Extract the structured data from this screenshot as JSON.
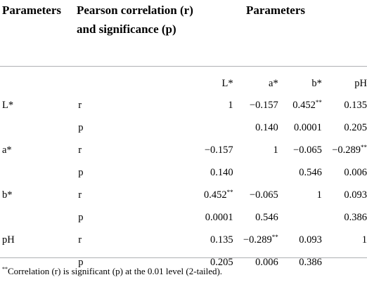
{
  "header": {
    "col_parameters": "Parameters",
    "col_pearson": "Pearson correlation (r) and significance (p)",
    "col_parameters_group": "Parameters"
  },
  "columns": [
    "L*",
    "a*",
    "b*",
    "pH"
  ],
  "rows": [
    {
      "param": "L*",
      "stat": "r",
      "values": [
        "1",
        "−0.157",
        "0.452**",
        "0.135"
      ]
    },
    {
      "param": "",
      "stat": "p",
      "values": [
        "",
        "0.140",
        "0.0001",
        "0.205"
      ]
    },
    {
      "param": "a*",
      "stat": "r",
      "values": [
        "−0.157",
        "1",
        "−0.065",
        "−0.289**"
      ]
    },
    {
      "param": "",
      "stat": "p",
      "values": [
        "0.140",
        "",
        "0.546",
        "0.006"
      ]
    },
    {
      "param": "b*",
      "stat": "r",
      "values": [
        "0.452**",
        "−0.065",
        "1",
        "0.093"
      ]
    },
    {
      "param": "",
      "stat": "p",
      "values": [
        "0.0001",
        "0.546",
        "",
        "0.386"
      ]
    },
    {
      "param": "pH",
      "stat": "r",
      "values": [
        "0.135",
        "−0.289**",
        "0.093",
        "1"
      ]
    },
    {
      "param": "",
      "stat": "p",
      "values": [
        "0.205",
        "0.006",
        "0.386",
        ""
      ]
    }
  ],
  "footnote": {
    "marker": "**",
    "text": "Correlation (r) is significant (p) at the 0.01 level (2-tailed)."
  }
}
